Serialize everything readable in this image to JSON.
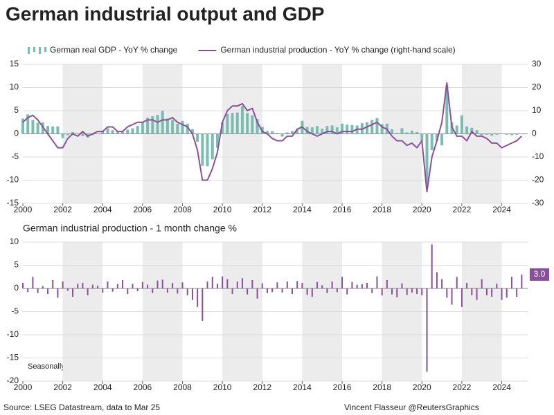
{
  "chart_data": [
    {
      "type": "bar_line",
      "title": "German industrial output and GDP",
      "x": [
        2000,
        2000.25,
        2000.5,
        2000.75,
        2001,
        2001.25,
        2001.5,
        2001.75,
        2002,
        2002.25,
        2002.5,
        2002.75,
        2003,
        2003.25,
        2003.5,
        2003.75,
        2004,
        2004.25,
        2004.5,
        2004.75,
        2005,
        2005.25,
        2005.5,
        2005.75,
        2006,
        2006.25,
        2006.5,
        2006.75,
        2007,
        2007.25,
        2007.5,
        2007.75,
        2008,
        2008.25,
        2008.5,
        2008.75,
        2009,
        2009.25,
        2009.5,
        2009.75,
        2010,
        2010.25,
        2010.5,
        2010.75,
        2011,
        2011.25,
        2011.5,
        2011.75,
        2012,
        2012.25,
        2012.5,
        2012.75,
        2013,
        2013.25,
        2013.5,
        2013.75,
        2014,
        2014.25,
        2014.5,
        2014.75,
        2015,
        2015.25,
        2015.5,
        2015.75,
        2016,
        2016.25,
        2016.5,
        2016.75,
        2017,
        2017.25,
        2017.5,
        2017.75,
        2018,
        2018.25,
        2018.5,
        2018.75,
        2019,
        2019.25,
        2019.5,
        2019.75,
        2020,
        2020.25,
        2020.5,
        2020.75,
        2021,
        2021.25,
        2021.5,
        2021.75,
        2022,
        2022.25,
        2022.5,
        2022.75,
        2023,
        2023.25,
        2023.5,
        2023.75,
        2024,
        2024.25,
        2024.5,
        2024.75,
        2025
      ],
      "series": [
        {
          "name": "German real GDP - YoY % change",
          "type": "bar",
          "color": "#79bcb1",
          "values": [
            3.3,
            4.2,
            3.0,
            2.4,
            2.5,
            1.7,
            1.6,
            1.6,
            -0.9,
            -0.3,
            0.4,
            0.1,
            -0.5,
            -0.8,
            -0.3,
            0.0,
            0.6,
            1.2,
            0.8,
            0.5,
            0.4,
            0.9,
            1.2,
            1.7,
            2.5,
            3.5,
            3.8,
            4.1,
            5.0,
            3.3,
            3.0,
            2.2,
            2.8,
            2.2,
            1.0,
            -1.7,
            -6.9,
            -7.0,
            -5.5,
            -3.0,
            2.5,
            4.3,
            4.5,
            4.6,
            6.0,
            4.5,
            4.0,
            3.2,
            1.5,
            0.6,
            0.6,
            0.2,
            -0.6,
            0.3,
            0.6,
            1.0,
            2.8,
            1.5,
            1.4,
            1.7,
            1.1,
            1.7,
            1.8,
            1.4,
            2.2,
            2.0,
            1.9,
            1.8,
            2.3,
            2.5,
            3.0,
            3.4,
            2.1,
            2.2,
            1.0,
            0.2,
            1.2,
            0.3,
            0.7,
            0.4,
            -1.5,
            -11.0,
            -3.5,
            -1.5,
            -2.5,
            10.5,
            2.5,
            1.8,
            4.0,
            1.6,
            1.3,
            0.8,
            -0.3,
            -0.2,
            -0.4,
            -0.2,
            0.0,
            -0.2,
            -0.3,
            -0.2,
            0.0
          ]
        },
        {
          "name": "German industrial production - YoY % change (right-hand scale)",
          "type": "line",
          "axis": "y2",
          "color": "#8a4f9a",
          "values": [
            5,
            7,
            8,
            6,
            3,
            0,
            -3,
            -6,
            -6,
            -2,
            0,
            -1,
            1,
            -1,
            0,
            1,
            1,
            3,
            3,
            1,
            1,
            3,
            4,
            5,
            5,
            6,
            6,
            5,
            6,
            6,
            7,
            5,
            4,
            3,
            0,
            -7,
            -20,
            -20,
            -15,
            -8,
            5,
            10,
            12,
            12,
            13,
            10,
            11,
            5,
            1,
            0,
            -2,
            -3,
            -3,
            -1,
            -1,
            2,
            3,
            1,
            0,
            -1,
            0,
            1,
            1,
            0,
            1,
            1,
            1,
            2,
            2,
            3,
            4,
            5,
            3,
            2,
            -1,
            -3,
            -3,
            -5,
            -4,
            -6,
            -3,
            -25,
            -10,
            -3,
            5,
            22,
            3,
            -1,
            -1,
            -3,
            1,
            -1,
            -1,
            -2,
            -4,
            -4,
            -6,
            -5,
            -4,
            -3,
            -1
          ]
        }
      ],
      "xlim": [
        2000,
        2025.3
      ],
      "xticks": [
        2000,
        2002,
        2004,
        2006,
        2008,
        2010,
        2012,
        2014,
        2016,
        2018,
        2020,
        2022,
        2024
      ],
      "ylim": [
        -15,
        15
      ],
      "yticks": [
        -15,
        -10,
        -5,
        0,
        5,
        10,
        15
      ],
      "y2lim": [
        -30,
        30
      ],
      "y2ticks": [
        -30,
        -20,
        -10,
        0,
        10,
        20,
        30
      ],
      "grid": true
    },
    {
      "type": "bar",
      "title": "German industrial production - 1 month change %",
      "annotation": "Seasonally adjusted",
      "latest_label": "3.0",
      "color": "#8a4f9a",
      "x": [
        2000,
        2000.25,
        2000.5,
        2000.75,
        2001,
        2001.25,
        2001.5,
        2001.75,
        2002,
        2002.25,
        2002.5,
        2002.75,
        2003,
        2003.25,
        2003.5,
        2003.75,
        2004,
        2004.25,
        2004.5,
        2004.75,
        2005,
        2005.25,
        2005.5,
        2005.75,
        2006,
        2006.25,
        2006.5,
        2006.75,
        2007,
        2007.25,
        2007.5,
        2007.75,
        2008,
        2008.25,
        2008.5,
        2008.75,
        2009,
        2009.25,
        2009.5,
        2009.75,
        2010,
        2010.25,
        2010.5,
        2010.75,
        2011,
        2011.25,
        2011.5,
        2011.75,
        2012,
        2012.25,
        2012.5,
        2012.75,
        2013,
        2013.25,
        2013.5,
        2013.75,
        2014,
        2014.25,
        2014.5,
        2014.75,
        2015,
        2015.25,
        2015.5,
        2015.75,
        2016,
        2016.25,
        2016.5,
        2016.75,
        2017,
        2017.25,
        2017.5,
        2017.75,
        2018,
        2018.25,
        2018.5,
        2018.75,
        2019,
        2019.25,
        2019.5,
        2019.75,
        2020,
        2020.25,
        2020.5,
        2020.75,
        2021,
        2021.25,
        2021.5,
        2021.75,
        2022,
        2022.25,
        2022.5,
        2022.75,
        2023,
        2023.25,
        2023.5,
        2023.75,
        2024,
        2024.25,
        2024.5,
        2024.75,
        2025
      ],
      "values": [
        1.2,
        -0.8,
        2.5,
        -1.0,
        0.5,
        -1.2,
        1.8,
        -2.0,
        1.5,
        -0.5,
        -1.8,
        1.0,
        1.2,
        -1.5,
        0.8,
        0.6,
        -0.9,
        1.5,
        -0.7,
        0.9,
        1.8,
        -1.2,
        1.0,
        -0.6,
        1.4,
        0.8,
        -1.0,
        1.7,
        1.9,
        -0.9,
        1.2,
        -1.1,
        1.3,
        -1.5,
        -2.5,
        -4.0,
        -7.0,
        1.5,
        2.5,
        1.0,
        2.6,
        2.0,
        -1.2,
        1.5,
        2.2,
        -1.3,
        1.8,
        -2.2,
        1.1,
        -1.0,
        -0.8,
        1.3,
        -0.9,
        1.5,
        -1.2,
        1.6,
        1.2,
        -1.4,
        -1.8,
        1.4,
        0.7,
        -1.0,
        1.5,
        -0.8,
        2.5,
        -1.3,
        1.4,
        0.8,
        0.9,
        1.2,
        -1.0,
        2.6,
        -1.5,
        1.8,
        -1.3,
        -1.9,
        1.1,
        -1.4,
        -0.9,
        -1.2,
        -1.5,
        -18.0,
        9.5,
        3.5,
        2.0,
        -2.0,
        -3.5,
        2.5,
        -4.0,
        1.2,
        -1.5,
        -2.5,
        2.0,
        -1.5,
        -1.8,
        1.0,
        -2.5,
        -2.0,
        2.5,
        -1.8,
        3.0
      ],
      "xlim": [
        2000,
        2025.3
      ],
      "xticks": [
        2000,
        2002,
        2004,
        2006,
        2008,
        2010,
        2012,
        2014,
        2016,
        2018,
        2020,
        2022,
        2024
      ],
      "ylim": [
        -20,
        10
      ],
      "yticks": [
        -20,
        -15,
        -10,
        -5,
        0,
        5,
        10
      ],
      "grid": true,
      "source": "Source: LSEG Datastream, data to Mar 25",
      "credit": "Vincent Flasseur @ReutersGraphics"
    }
  ]
}
